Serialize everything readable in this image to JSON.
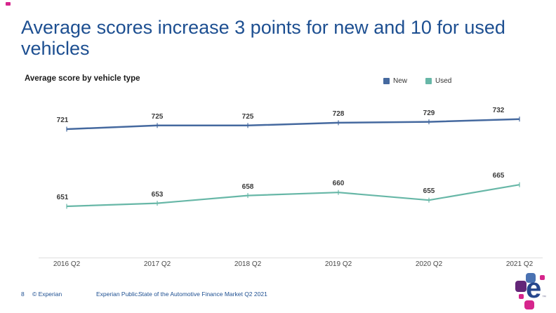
{
  "slide": {
    "title": "Average scores increase 3 points for new and 10 for used vehicles"
  },
  "chart_data": {
    "type": "line",
    "title": "Average score by vehicle type",
    "categories": [
      "2016 Q2",
      "2017 Q2",
      "2018 Q2",
      "2019 Q2",
      "2020 Q2",
      "2021 Q2"
    ],
    "series": [
      {
        "name": "New",
        "color": "#45699f",
        "values": [
          721,
          725,
          725,
          728,
          729,
          732
        ]
      },
      {
        "name": "Used",
        "color": "#67b7a7",
        "values": [
          651,
          653,
          658,
          660,
          655,
          665
        ]
      }
    ],
    "data_labels": true,
    "grid": false,
    "y_axis_visible": false,
    "legend_position": "top-right"
  },
  "footer": {
    "page_number": "8",
    "copyright": "© Experian",
    "classification": "Experian Public.",
    "report_title": "State of the Automotive Finance Market Q2 2021"
  },
  "logo": {
    "letter": "e",
    "trademark": "™",
    "colors": {
      "blue": "#4a72b2",
      "purple": "#632678",
      "magenta": "#d6258c",
      "letter_blue": "#26478d"
    }
  },
  "accent_color": "#1d4f91"
}
